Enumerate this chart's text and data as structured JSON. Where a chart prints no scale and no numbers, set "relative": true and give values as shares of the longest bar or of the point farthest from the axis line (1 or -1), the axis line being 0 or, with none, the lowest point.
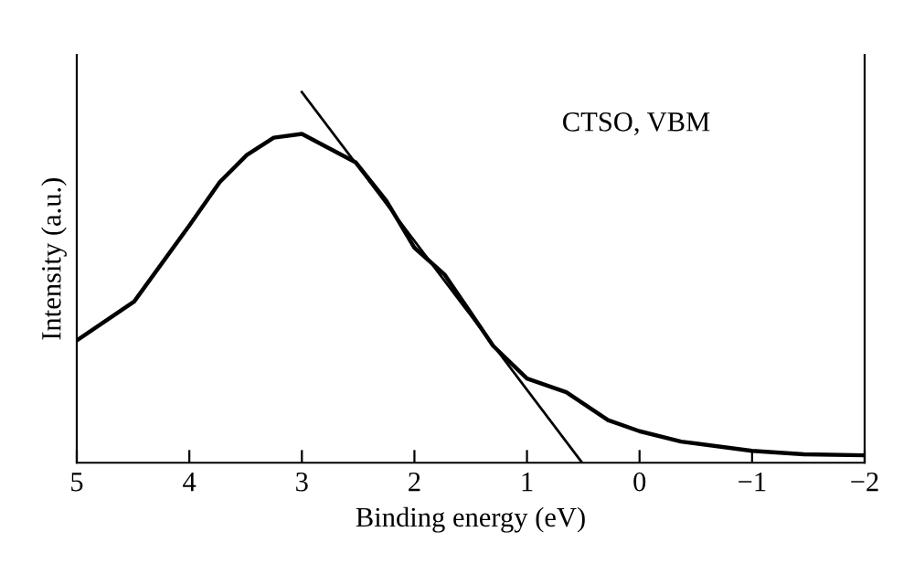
{
  "chart_data": {
    "type": "line",
    "xlabel": "Binding energy (eV)",
    "ylabel": "Intensity (a.u.)",
    "relative": true,
    "annotations": [
      "CTSO, VBM"
    ],
    "xlim": [
      5,
      -2
    ],
    "xticks": [
      5,
      4,
      3,
      2,
      1,
      0,
      {
        "value": -1,
        "label": "−1"
      },
      {
        "value": -2,
        "label": "−2"
      }
    ],
    "tick_labels": "x",
    "grid": false,
    "marker": "none",
    "line_style": "solid",
    "series": [
      {
        "color": "#000000",
        "x": [
          5,
          4.49,
          4.0,
          3.73,
          3.49,
          3.25,
          3.0,
          2.52,
          2.25,
          2.0,
          1.73,
          1.3,
          1.0,
          0.65,
          0.28,
          0,
          -0.37,
          -1,
          -1.46,
          -2
        ],
        "values": [
          0.33,
          0.435,
          0.64,
          0.757,
          0.83,
          0.877,
          0.887,
          0.81,
          0.707,
          0.58,
          0.507,
          0.315,
          0.227,
          0.19,
          0.115,
          0.085,
          0.057,
          0.032,
          0.023,
          0.02
        ]
      },
      {
        "type": "line",
        "color": "#000000",
        "x": [
          3,
          0.51
        ],
        "values": [
          1,
          0
        ]
      }
    ]
  }
}
